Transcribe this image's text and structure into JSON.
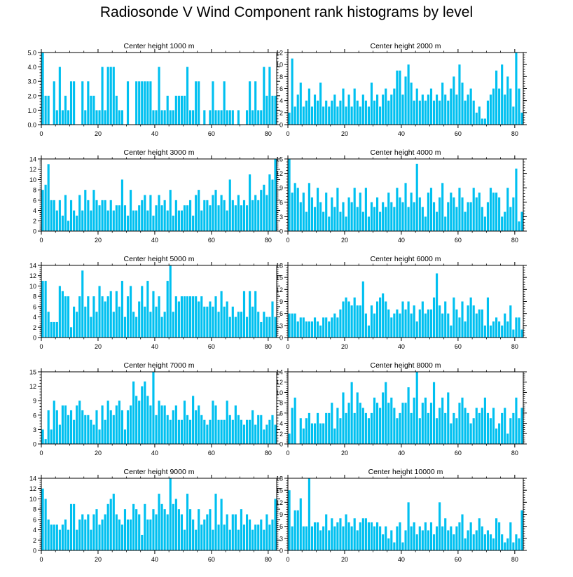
{
  "figure": {
    "title": "Radiosonde V Wind Component rank histograms by level"
  },
  "style": {
    "bar_color": "#00C0F0",
    "bar_edge": "#FFFFFF",
    "axis_color": "#000000"
  },
  "chart_data": [
    {
      "type": "bar",
      "title": "Center height 1000 m",
      "ylim": [
        0,
        5
      ],
      "yticks": [
        0,
        1,
        2,
        3,
        4,
        5
      ],
      "ytick_labels": [
        "0.0",
        "1.0",
        "2.0",
        "3.0",
        "4.0",
        "5.0"
      ],
      "xlim": [
        0,
        83
      ],
      "xticks": [
        0,
        20,
        40,
        60,
        80
      ],
      "values": [
        5,
        2,
        2,
        0,
        3,
        1,
        4,
        1,
        2,
        1,
        3,
        3,
        0,
        0,
        3,
        1,
        3,
        2,
        2,
        1,
        1,
        4,
        1,
        4,
        4,
        4,
        2,
        1,
        1,
        0,
        3,
        0,
        0,
        3,
        3,
        3,
        3,
        3,
        3,
        1,
        1,
        4,
        1,
        1,
        2,
        1,
        1,
        2,
        2,
        2,
        2,
        4,
        1,
        1,
        3,
        3,
        0,
        1,
        0,
        1,
        3,
        1,
        1,
        1,
        3,
        1,
        1,
        1,
        0,
        1,
        0,
        0,
        1,
        3,
        1,
        3,
        1,
        1,
        4,
        2,
        4,
        2,
        2
      ]
    },
    {
      "type": "bar",
      "title": "Center height 2000 m",
      "ylim": [
        0,
        12
      ],
      "yticks": [
        0,
        2,
        4,
        6,
        8,
        10,
        12
      ],
      "ytick_labels": [
        "0",
        "2",
        "4",
        "6",
        "8",
        "10",
        "12"
      ],
      "xlim": [
        0,
        83
      ],
      "xticks": [
        0,
        20,
        40,
        60,
        80
      ],
      "values": [
        2,
        11,
        3,
        5,
        7,
        3,
        4,
        6,
        3,
        5,
        4,
        7,
        3,
        4,
        3,
        4,
        5,
        3,
        4,
        6,
        3,
        5,
        3,
        6,
        4,
        3,
        5,
        4,
        3,
        7,
        4,
        5,
        3,
        5,
        6,
        4,
        5,
        6,
        9,
        9,
        5,
        8,
        10,
        7,
        4,
        6,
        4,
        5,
        4,
        5,
        6,
        4,
        5,
        4,
        7,
        5,
        4,
        6,
        8,
        5,
        10,
        7,
        4,
        5,
        6,
        4,
        2,
        3,
        1,
        1,
        4,
        5,
        6,
        9,
        6,
        10,
        5,
        8,
        6,
        3,
        12,
        6,
        2
      ]
    },
    {
      "type": "bar",
      "title": "Center height 3000 m",
      "ylim": [
        0,
        14
      ],
      "yticks": [
        0,
        2,
        4,
        6,
        8,
        10,
        12,
        14
      ],
      "ytick_labels": [
        "0",
        "2",
        "4",
        "6",
        "8",
        "10",
        "12",
        "14"
      ],
      "xlim": [
        0,
        83
      ],
      "xticks": [
        0,
        20,
        40,
        60,
        80
      ],
      "values": [
        8,
        9,
        13,
        6,
        6,
        4,
        6,
        3,
        7,
        2,
        6,
        4,
        3,
        7,
        4,
        8,
        6,
        4,
        8,
        6,
        5,
        6,
        6,
        4,
        6,
        4,
        5,
        5,
        10,
        5,
        3,
        8,
        4,
        4,
        5,
        6,
        7,
        4,
        7,
        3,
        5,
        7,
        5,
        6,
        4,
        8,
        3,
        6,
        4,
        4,
        5,
        5,
        6,
        3,
        7,
        8,
        4,
        6,
        6,
        5,
        7,
        8,
        5,
        7,
        6,
        4,
        10,
        6,
        5,
        7,
        5,
        6,
        5,
        11,
        6,
        7,
        6,
        8,
        9,
        7,
        11,
        10,
        14
      ]
    },
    {
      "type": "bar",
      "title": "Center height 4000 m",
      "ylim": [
        0,
        15
      ],
      "yticks": [
        0,
        3,
        6,
        9,
        12,
        15
      ],
      "ytick_labels": [
        "0",
        "3",
        "6",
        "9",
        "12",
        "15"
      ],
      "xlim": [
        0,
        83
      ],
      "xticks": [
        0,
        20,
        40,
        60,
        80
      ],
      "values": [
        15,
        8,
        10,
        9,
        6,
        8,
        4,
        10,
        7,
        5,
        9,
        6,
        4,
        8,
        3,
        7,
        5,
        9,
        4,
        6,
        3,
        7,
        6,
        9,
        5,
        8,
        4,
        9,
        3,
        6,
        5,
        7,
        4,
        6,
        5,
        8,
        6,
        5,
        9,
        7,
        6,
        10,
        5,
        8,
        6,
        14,
        7,
        5,
        3,
        8,
        9,
        6,
        4,
        7,
        10,
        3,
        6,
        8,
        7,
        5,
        9,
        7,
        4,
        6,
        6,
        9,
        7,
        8,
        5,
        3,
        6,
        9,
        8,
        8,
        7,
        3,
        4,
        9,
        5,
        7,
        13,
        2,
        4
      ]
    },
    {
      "type": "bar",
      "title": "Center height 5000 m",
      "ylim": [
        0,
        14
      ],
      "yticks": [
        0,
        2,
        4,
        6,
        8,
        10,
        12,
        14
      ],
      "ytick_labels": [
        "0",
        "2",
        "4",
        "6",
        "8",
        "10",
        "12",
        "14"
      ],
      "xlim": [
        0,
        83
      ],
      "xticks": [
        0,
        20,
        40,
        60,
        80
      ],
      "values": [
        11,
        11,
        5,
        3,
        3,
        3,
        10,
        9,
        8,
        8,
        2,
        6,
        5,
        8,
        13,
        6,
        8,
        4,
        8,
        5,
        10,
        8,
        7,
        8,
        9,
        5,
        9,
        6,
        11,
        4,
        8,
        10,
        5,
        4,
        7,
        10,
        6,
        11,
        5,
        9,
        6,
        8,
        4,
        5,
        11,
        14,
        5,
        8,
        7,
        8,
        8,
        8,
        8,
        8,
        8,
        7,
        8,
        6,
        6,
        7,
        6,
        8,
        5,
        9,
        6,
        7,
        4,
        6,
        4,
        5,
        5,
        9,
        4,
        9,
        6,
        9,
        5,
        3,
        5,
        4,
        4,
        7,
        4
      ]
    },
    {
      "type": "bar",
      "title": "Center height 6000 m",
      "ylim": [
        0,
        18
      ],
      "yticks": [
        0,
        3,
        6,
        9,
        12,
        15,
        18
      ],
      "ytick_labels": [
        "0",
        "3",
        "6",
        "9",
        "12",
        "15",
        "18"
      ],
      "xlim": [
        0,
        83
      ],
      "xticks": [
        0,
        20,
        40,
        60,
        80
      ],
      "values": [
        6,
        6,
        6,
        4,
        5,
        5,
        4,
        4,
        4,
        5,
        4,
        3,
        5,
        5,
        4,
        5,
        6,
        5,
        7,
        9,
        10,
        9,
        8,
        10,
        8,
        8,
        14,
        6,
        3,
        8,
        6,
        9,
        10,
        11,
        9,
        7,
        5,
        6,
        7,
        6,
        9,
        7,
        9,
        6,
        8,
        4,
        7,
        9,
        6,
        7,
        7,
        10,
        16,
        8,
        6,
        9,
        6,
        3,
        10,
        7,
        5,
        9,
        4,
        8,
        10,
        8,
        6,
        7,
        7,
        3,
        10,
        3,
        4,
        5,
        4,
        3,
        6,
        4,
        8,
        2,
        5,
        5,
        2
      ]
    },
    {
      "type": "bar",
      "title": "Center height 7000 m",
      "ylim": [
        0,
        15
      ],
      "yticks": [
        0,
        3,
        6,
        9,
        12,
        15
      ],
      "ytick_labels": [
        "0",
        "3",
        "6",
        "9",
        "12",
        "15"
      ],
      "xlim": [
        0,
        83
      ],
      "xticks": [
        0,
        20,
        40,
        60,
        80
      ],
      "values": [
        3,
        1,
        7,
        3,
        9,
        7,
        4,
        8,
        8,
        6,
        7,
        5,
        8,
        9,
        7,
        6,
        6,
        5,
        4,
        7,
        3,
        8,
        5,
        9,
        7,
        6,
        8,
        9,
        7,
        3,
        7,
        8,
        13,
        10,
        9,
        12,
        13,
        10,
        8,
        15,
        6,
        9,
        8,
        8,
        6,
        5,
        7,
        8,
        5,
        5,
        9,
        6,
        5,
        10,
        7,
        8,
        6,
        5,
        4,
        5,
        9,
        8,
        5,
        5,
        5,
        9,
        6,
        5,
        8,
        6,
        5,
        4,
        5,
        5,
        7,
        4,
        6,
        6,
        3,
        4,
        5,
        6,
        4
      ]
    },
    {
      "type": "bar",
      "title": "Center height 8000 m",
      "ylim": [
        0,
        14
      ],
      "yticks": [
        0,
        2,
        4,
        6,
        8,
        10,
        12,
        14
      ],
      "ytick_labels": [
        "0",
        "2",
        "4",
        "6",
        "8",
        "10",
        "12",
        "14"
      ],
      "xlim": [
        0,
        83
      ],
      "xticks": [
        0,
        20,
        40,
        60,
        80
      ],
      "values": [
        2,
        7,
        9,
        0,
        5,
        3,
        5,
        6,
        4,
        4,
        6,
        4,
        4,
        6,
        6,
        8,
        3,
        7,
        5,
        10,
        6,
        8,
        12,
        6,
        10,
        8,
        7,
        6,
        5,
        6,
        9,
        8,
        7,
        10,
        12,
        8,
        9,
        7,
        5,
        6,
        8,
        8,
        11,
        6,
        9,
        14,
        5,
        8,
        9,
        6,
        8,
        12,
        5,
        7,
        9,
        6,
        10,
        4,
        6,
        5,
        8,
        9,
        7,
        6,
        4,
        5,
        7,
        6,
        7,
        9,
        6,
        5,
        7,
        3,
        4,
        6,
        7,
        2,
        5,
        6,
        9,
        5,
        7
      ]
    },
    {
      "type": "bar",
      "title": "Center height 9000 m",
      "ylim": [
        0,
        14
      ],
      "yticks": [
        0,
        2,
        4,
        6,
        8,
        10,
        12,
        14
      ],
      "ytick_labels": [
        "0",
        "2",
        "4",
        "6",
        "8",
        "10",
        "12",
        "14"
      ],
      "xlim": [
        0,
        83
      ],
      "xticks": [
        0,
        20,
        40,
        60,
        80
      ],
      "values": [
        12,
        10,
        6,
        5,
        5,
        5,
        4,
        5,
        6,
        4,
        9,
        9,
        4,
        6,
        7,
        6,
        7,
        4,
        7,
        8,
        5,
        6,
        7,
        9,
        10,
        11,
        7,
        6,
        5,
        8,
        6,
        6,
        9,
        8,
        7,
        3,
        9,
        6,
        6,
        8,
        7,
        11,
        9,
        8,
        7,
        14,
        9,
        10,
        8,
        7,
        4,
        11,
        8,
        6,
        4,
        8,
        5,
        6,
        7,
        8,
        4,
        11,
        5,
        10,
        5,
        7,
        4,
        7,
        7,
        4,
        8,
        5,
        7,
        6,
        4,
        5,
        5,
        6,
        4,
        7,
        5,
        6,
        10
      ]
    },
    {
      "type": "bar",
      "title": "Center height 10000 m",
      "ylim": [
        0,
        18
      ],
      "yticks": [
        0,
        3,
        6,
        9,
        12,
        15,
        18
      ],
      "ytick_labels": [
        "0",
        "3",
        "6",
        "9",
        "12",
        "15",
        "18"
      ],
      "xlim": [
        0,
        83
      ],
      "xticks": [
        0,
        20,
        40,
        60,
        80
      ],
      "values": [
        15,
        6,
        10,
        10,
        13,
        6,
        6,
        18,
        6,
        7,
        7,
        5,
        6,
        9,
        5,
        8,
        6,
        7,
        8,
        6,
        9,
        7,
        6,
        8,
        5,
        7,
        8,
        8,
        7,
        7,
        6,
        7,
        6,
        4,
        6,
        3,
        5,
        2,
        6,
        7,
        2,
        5,
        12,
        6,
        7,
        4,
        6,
        5,
        7,
        5,
        7,
        4,
        6,
        12,
        6,
        8,
        5,
        6,
        4,
        6,
        7,
        9,
        3,
        5,
        7,
        4,
        5,
        8,
        6,
        4,
        5,
        4,
        3,
        8,
        7,
        4,
        2,
        3,
        7,
        2,
        4,
        3,
        10
      ]
    }
  ]
}
